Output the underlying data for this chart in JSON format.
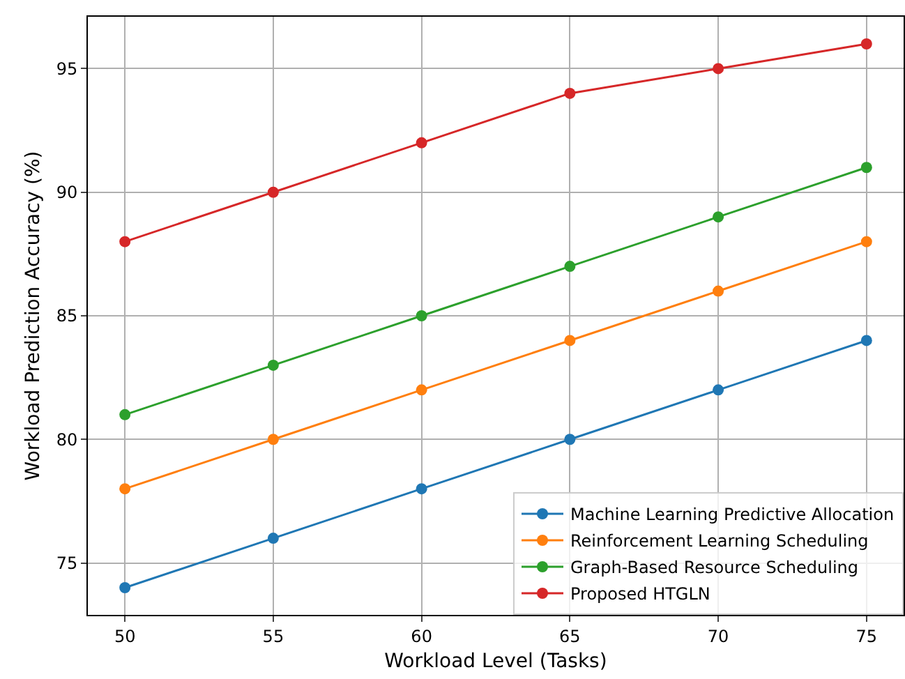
{
  "chart_data": {
    "type": "line",
    "xlabel": "Workload Level (Tasks)",
    "ylabel": "Workload Prediction Accuracy (%)",
    "x": [
      50,
      55,
      60,
      65,
      70,
      75
    ],
    "series": [
      {
        "name": "Machine Learning Predictive Allocation",
        "color": "#1f77b4",
        "values": [
          74,
          76,
          78,
          80,
          82,
          84
        ]
      },
      {
        "name": "Reinforcement Learning Scheduling",
        "color": "#ff7f0e",
        "values": [
          78,
          80,
          82,
          84,
          86,
          88
        ]
      },
      {
        "name": "Graph-Based Resource Scheduling",
        "color": "#2ca02c",
        "values": [
          81,
          83,
          85,
          87,
          89,
          91
        ]
      },
      {
        "name": "Proposed HTGLN",
        "color": "#d62728",
        "values": [
          88,
          90,
          92,
          94,
          95,
          96
        ]
      }
    ],
    "xlim": [
      48.75,
      76.25
    ],
    "xticks": [
      50,
      55,
      60,
      65,
      70,
      75
    ],
    "ylim": [
      72.9,
      97.1
    ],
    "yticks": [
      75,
      80,
      85,
      90,
      95
    ],
    "grid": true,
    "legend": "bottom right",
    "marker": "circle",
    "line_style": "solid"
  }
}
